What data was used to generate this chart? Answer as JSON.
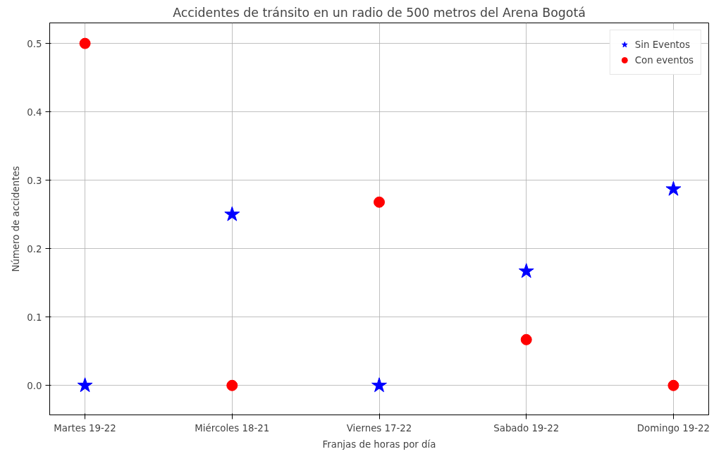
{
  "chart_data": {
    "type": "scatter",
    "title": "Accidentes de tránsito en un radio de 500 metros del Arena Bogotá",
    "xlabel": "Franjas de horas por día",
    "ylabel": "Número de accidentes",
    "categories": [
      "Martes 19-22",
      "Miércoles 18-21",
      "Viernes 17-22",
      "Sabado 19-22",
      "Domingo 19-22"
    ],
    "series": [
      {
        "name": "Sin Eventos",
        "color": "#0000ff",
        "marker": "star",
        "values": [
          0,
          0.25,
          0,
          0.167,
          0.287
        ]
      },
      {
        "name": "Con eventos",
        "color": "#ff0000",
        "marker": "circle",
        "values": [
          0.5,
          0,
          0.268,
          0.067,
          0
        ]
      }
    ],
    "ylim": [
      -0.043,
      0.53
    ],
    "yticks": [
      {
        "value": 0,
        "label": "0.0"
      },
      0.1,
      0.2,
      0.3,
      0.4,
      0.5
    ],
    "grid": true,
    "legend": "top right"
  }
}
